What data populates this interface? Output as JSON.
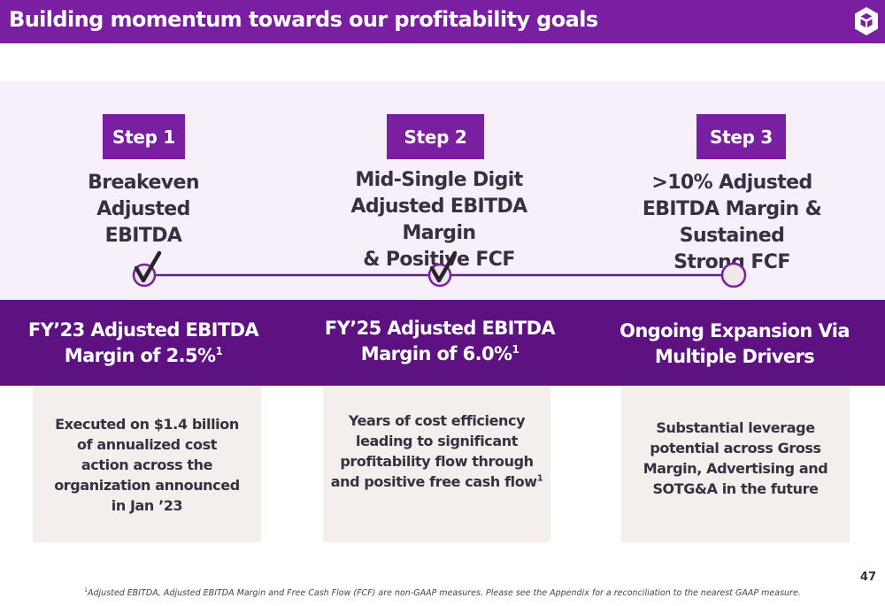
{
  "header": {
    "title": "Building momentum towards our profitability goals",
    "logo": "brand-logo-icon"
  },
  "steps": [
    {
      "label": "Step 1",
      "goal": [
        "Breakeven",
        "Adjusted",
        "EBITDA"
      ],
      "status": "achieved"
    },
    {
      "label": "Step 2",
      "goal": [
        "Mid-Single Digit",
        "Adjusted EBITDA Margin",
        "& Positive FCF"
      ],
      "status": "achieved"
    },
    {
      "label": "Step 3",
      "goal": [
        ">10% Adjusted",
        "EBITDA Margin & Sustained",
        "Strong FCF"
      ],
      "status": "pending"
    }
  ],
  "metrics": [
    {
      "line1": "FY’23 Adjusted EBITDA",
      "line2": "Margin of 2.5%",
      "sup": "1"
    },
    {
      "line1": "FY’25 Adjusted EBITDA",
      "line2": "Margin of 6.0%",
      "sup": "1"
    },
    {
      "line1": "Ongoing Expansion Via",
      "line2": "Multiple Drivers"
    }
  ],
  "cards": [
    {
      "lines": [
        "Executed on $1.4 billion",
        "of annualized cost",
        "action across the",
        "organization announced",
        "in Jan ’23"
      ]
    },
    {
      "lines": [
        "Years of cost efficiency",
        "leading to significant",
        "profitability flow through",
        "and positive free cash flow"
      ],
      "sup": "1"
    },
    {
      "lines": [
        "Substantial leverage",
        "potential across Gross",
        "Margin, Advertising and",
        "SOTG&A in the future"
      ]
    }
  ],
  "footer": {
    "page_number": "47",
    "footnote_marker": "1",
    "footnote": "Adjusted EBITDA, Adjusted EBITDA Margin and Free Cash Flow (FCF) are non-GAAP measures. Please see the Appendix for a reconciliation to the nearest GAAP measure."
  },
  "colors": {
    "brand_purple": "#7a1fa2",
    "dark_purple": "#5e1180",
    "light_band": "#f7f0fb",
    "card_bg": "#f4efed"
  }
}
